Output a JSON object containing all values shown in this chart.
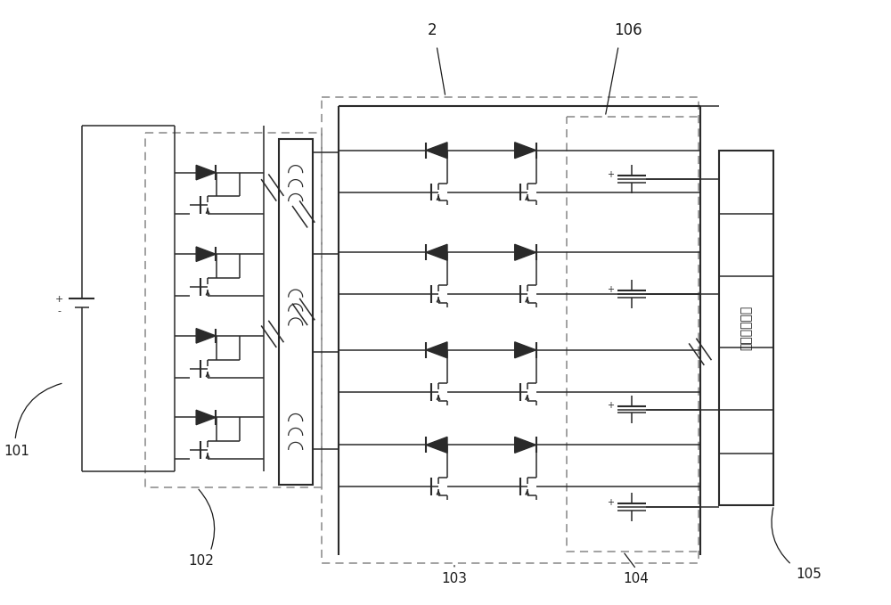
{
  "bg_color": "#ffffff",
  "line_color": "#2a2a2a",
  "dashed_color": "#888888",
  "text_color": "#1a1a1a",
  "label_101": "101",
  "label_102": "102",
  "label_103": "103",
  "label_104": "104",
  "label_105": "105",
  "label_106": "106",
  "label_2": "2",
  "module_text": "电压采集模块",
  "figsize": [
    10.0,
    6.79
  ],
  "dpi": 100
}
